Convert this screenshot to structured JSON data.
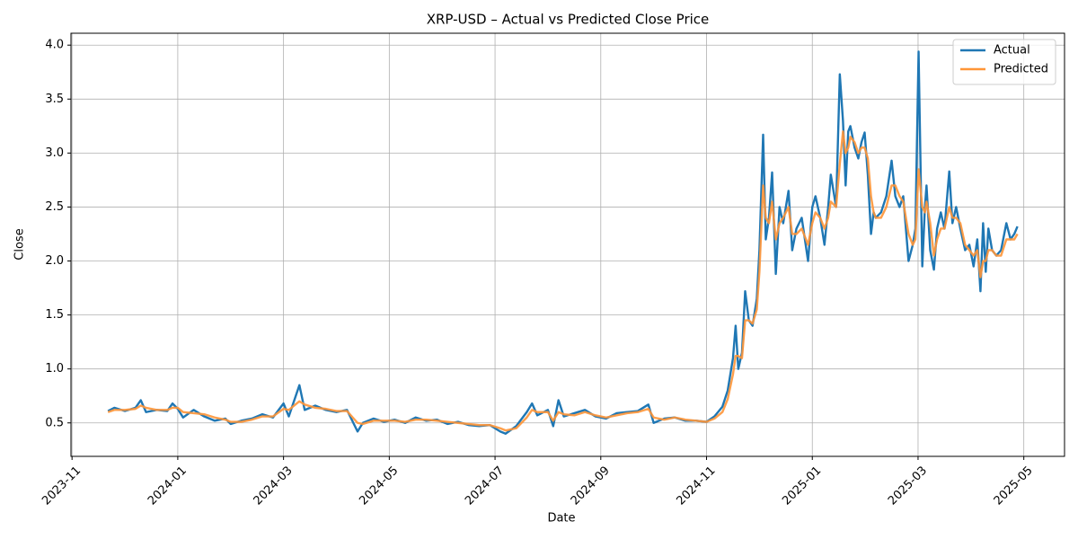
{
  "chart_data": {
    "type": "line",
    "title": "XRP-USD – Actual vs Predicted Close Price",
    "xlabel": "Date",
    "ylabel": "Close",
    "x": [
      0.68,
      0.8,
      1.0,
      1.2,
      1.3,
      1.4,
      1.6,
      1.8,
      1.9,
      2.0,
      2.1,
      2.3,
      2.5,
      2.7,
      2.9,
      3.0,
      3.2,
      3.4,
      3.6,
      3.8,
      4.0,
      4.1,
      4.3,
      4.4,
      4.6,
      4.8,
      5.0,
      5.2,
      5.4,
      5.5,
      5.7,
      5.9,
      6.1,
      6.3,
      6.5,
      6.7,
      6.9,
      7.1,
      7.3,
      7.5,
      7.7,
      7.9,
      8.1,
      8.2,
      8.4,
      8.6,
      8.7,
      8.8,
      9.0,
      9.1,
      9.2,
      9.3,
      9.5,
      9.7,
      9.9,
      10.1,
      10.3,
      10.5,
      10.7,
      10.9,
      11.0,
      11.2,
      11.4,
      11.6,
      11.8,
      12.0,
      12.15,
      12.3,
      12.4,
      12.5,
      12.55,
      12.6,
      12.67,
      12.73,
      12.8,
      12.87,
      12.95,
      13.0,
      13.07,
      13.12,
      13.18,
      13.24,
      13.31,
      13.38,
      13.45,
      13.55,
      13.62,
      13.7,
      13.8,
      13.92,
      14.0,
      14.06,
      14.15,
      14.23,
      14.3,
      14.35,
      14.45,
      14.52,
      14.58,
      14.63,
      14.68,
      14.72,
      14.8,
      14.87,
      14.93,
      14.99,
      15.05,
      15.11,
      15.16,
      15.2,
      15.3,
      15.4,
      15.5,
      15.57,
      15.65,
      15.72,
      15.82,
      15.9,
      15.95,
      16.01,
      16.08,
      16.13,
      16.16,
      16.23,
      16.3,
      16.36,
      16.43,
      16.5,
      16.59,
      16.65,
      16.72,
      16.8,
      16.89,
      16.97,
      17.05,
      17.12,
      17.18,
      17.23,
      17.28,
      17.33,
      17.4,
      17.48,
      17.57,
      17.67,
      17.75,
      17.82,
      17.88
    ],
    "series": [
      {
        "name": "Actual",
        "color": "#1f77b4",
        "values": [
          0.61,
          0.64,
          0.61,
          0.64,
          0.71,
          0.6,
          0.62,
          0.61,
          0.68,
          0.63,
          0.55,
          0.62,
          0.56,
          0.52,
          0.54,
          0.49,
          0.52,
          0.54,
          0.58,
          0.55,
          0.68,
          0.56,
          0.85,
          0.62,
          0.66,
          0.62,
          0.6,
          0.62,
          0.42,
          0.5,
          0.54,
          0.51,
          0.53,
          0.5,
          0.55,
          0.52,
          0.53,
          0.49,
          0.51,
          0.48,
          0.47,
          0.48,
          0.42,
          0.4,
          0.47,
          0.6,
          0.68,
          0.57,
          0.62,
          0.47,
          0.71,
          0.56,
          0.59,
          0.62,
          0.56,
          0.54,
          0.59,
          0.6,
          0.61,
          0.67,
          0.5,
          0.54,
          0.55,
          0.52,
          0.52,
          0.51,
          0.56,
          0.65,
          0.8,
          1.1,
          1.4,
          1.0,
          1.15,
          1.72,
          1.45,
          1.4,
          1.65,
          2.1,
          3.17,
          2.2,
          2.4,
          2.82,
          1.88,
          2.5,
          2.35,
          2.65,
          2.1,
          2.3,
          2.4,
          2.0,
          2.5,
          2.6,
          2.4,
          2.15,
          2.5,
          2.8,
          2.5,
          3.73,
          3.3,
          2.7,
          3.2,
          3.25,
          3.05,
          2.95,
          3.1,
          3.19,
          2.8,
          2.25,
          2.45,
          2.4,
          2.45,
          2.6,
          2.93,
          2.6,
          2.5,
          2.6,
          2.0,
          2.15,
          2.3,
          3.94,
          1.95,
          2.5,
          2.7,
          2.1,
          1.92,
          2.3,
          2.45,
          2.3,
          2.83,
          2.35,
          2.5,
          2.3,
          2.1,
          2.15,
          1.95,
          2.2,
          1.72,
          2.35,
          1.9,
          2.3,
          2.1,
          2.05,
          2.1,
          2.35,
          2.2,
          2.25,
          2.32
        ]
      },
      {
        "name": "Predicted",
        "color": "#ff9537",
        "values": [
          0.6,
          0.62,
          0.62,
          0.63,
          0.66,
          0.64,
          0.62,
          0.62,
          0.64,
          0.64,
          0.6,
          0.59,
          0.58,
          0.55,
          0.53,
          0.51,
          0.51,
          0.53,
          0.56,
          0.56,
          0.63,
          0.62,
          0.7,
          0.67,
          0.64,
          0.63,
          0.61,
          0.61,
          0.5,
          0.49,
          0.52,
          0.52,
          0.52,
          0.51,
          0.53,
          0.53,
          0.52,
          0.51,
          0.5,
          0.49,
          0.48,
          0.48,
          0.45,
          0.43,
          0.45,
          0.55,
          0.62,
          0.6,
          0.6,
          0.52,
          0.6,
          0.58,
          0.57,
          0.6,
          0.57,
          0.55,
          0.57,
          0.59,
          0.6,
          0.63,
          0.55,
          0.53,
          0.55,
          0.53,
          0.52,
          0.51,
          0.54,
          0.6,
          0.72,
          0.95,
          1.12,
          1.12,
          1.1,
          1.45,
          1.45,
          1.42,
          1.55,
          1.9,
          2.7,
          2.4,
          2.35,
          2.55,
          2.2,
          2.35,
          2.4,
          2.5,
          2.25,
          2.25,
          2.3,
          2.15,
          2.35,
          2.45,
          2.4,
          2.3,
          2.4,
          2.55,
          2.5,
          2.9,
          3.2,
          3.0,
          3.05,
          3.15,
          3.1,
          3.0,
          3.05,
          3.05,
          2.95,
          2.6,
          2.45,
          2.4,
          2.4,
          2.5,
          2.7,
          2.7,
          2.6,
          2.55,
          2.25,
          2.15,
          2.2,
          2.85,
          2.5,
          2.45,
          2.55,
          2.35,
          2.05,
          2.2,
          2.3,
          2.3,
          2.5,
          2.4,
          2.4,
          2.35,
          2.15,
          2.1,
          2.05,
          2.1,
          1.85,
          2.0,
          2.0,
          2.1,
          2.1,
          2.05,
          2.05,
          2.2,
          2.2,
          2.2,
          2.25
        ]
      }
    ],
    "xlim": [
      -0.02,
      18.77
    ],
    "xticks": [
      {
        "value": 0,
        "label": "2023-11"
      },
      {
        "value": 2,
        "label": "2024-01"
      },
      {
        "value": 4,
        "label": "2024-03"
      },
      {
        "value": 6,
        "label": "2024-05"
      },
      {
        "value": 8,
        "label": "2024-07"
      },
      {
        "value": 10,
        "label": "2024-09"
      },
      {
        "value": 12,
        "label": "2024-11"
      },
      {
        "value": 14,
        "label": "2025-01"
      },
      {
        "value": 16,
        "label": "2025-03"
      },
      {
        "value": 18,
        "label": "2025-05"
      }
    ],
    "ylim": [
      0.19,
      4.11
    ],
    "yticks": [
      {
        "value": 0.5,
        "label": "0.5"
      },
      {
        "value": 1,
        "label": "1.0"
      },
      {
        "value": 1.5,
        "label": "1.5"
      },
      {
        "value": 2,
        "label": "2.0"
      },
      {
        "value": 2.5,
        "label": "2.5"
      },
      {
        "value": 3,
        "label": "3.0"
      },
      {
        "value": 3.5,
        "label": "3.5"
      },
      {
        "value": 4,
        "label": "4.0"
      }
    ],
    "grid": true,
    "legend": "upper-right"
  }
}
